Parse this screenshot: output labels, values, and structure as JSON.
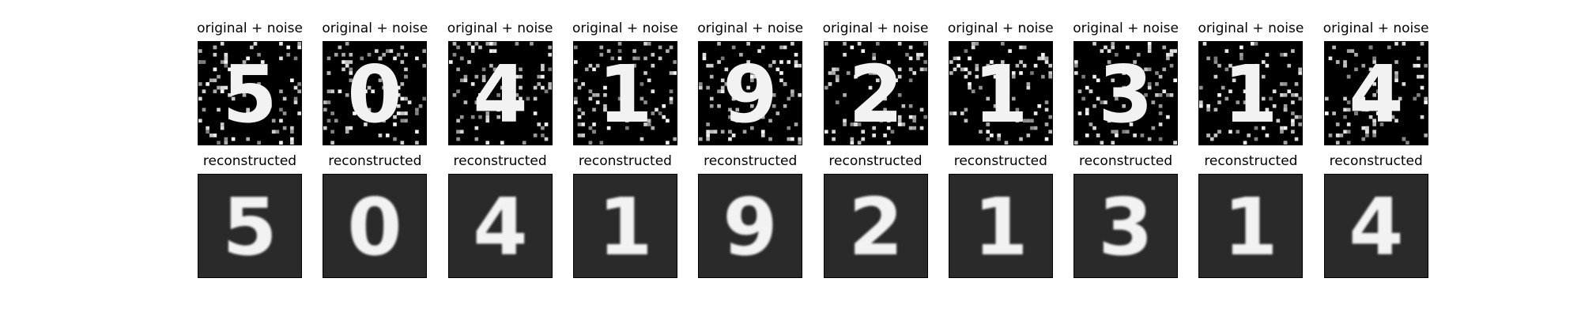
{
  "figure": {
    "rows": [
      {
        "title": "original + noise",
        "cells": [
          {
            "digit": "5"
          },
          {
            "digit": "0"
          },
          {
            "digit": "4"
          },
          {
            "digit": "1"
          },
          {
            "digit": "9"
          },
          {
            "digit": "2"
          },
          {
            "digit": "1"
          },
          {
            "digit": "3"
          },
          {
            "digit": "1"
          },
          {
            "digit": "4"
          }
        ]
      },
      {
        "title": "reconstructed",
        "cells": [
          {
            "digit": "5"
          },
          {
            "digit": "0"
          },
          {
            "digit": "4"
          },
          {
            "digit": "1"
          },
          {
            "digit": "9"
          },
          {
            "digit": "2"
          },
          {
            "digit": "1"
          },
          {
            "digit": "3"
          },
          {
            "digit": "1"
          },
          {
            "digit": "4"
          }
        ]
      }
    ]
  },
  "colors": {
    "noisy_background": "#000000",
    "reconstructed_background": "#2a2a2a",
    "stroke": "#f2f2f2",
    "title": "#000000"
  }
}
